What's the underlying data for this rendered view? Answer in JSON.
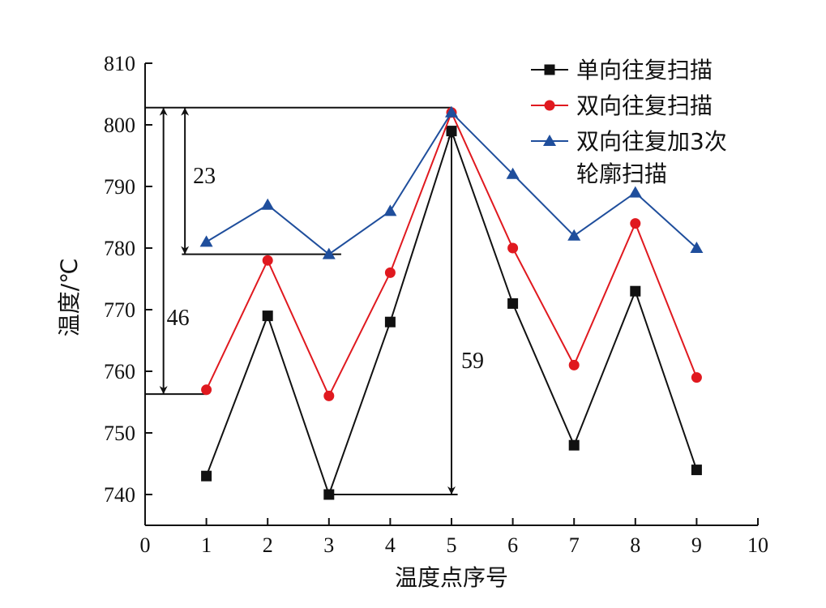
{
  "chart_data": {
    "type": "line",
    "xlabel": "温度点序号",
    "ylabel": "温度/℃",
    "xlim": [
      0,
      10
    ],
    "ylim": [
      735,
      810
    ],
    "x_ticks": [
      "0",
      "1",
      "2",
      "3",
      "4",
      "5",
      "6",
      "7",
      "8",
      "9",
      "10"
    ],
    "y_ticks": [
      "740",
      "750",
      "760",
      "770",
      "780",
      "790",
      "800",
      "810"
    ],
    "x": [
      1,
      2,
      3,
      4,
      5,
      6,
      7,
      8,
      9
    ],
    "grid": false,
    "legend_position": "top-right",
    "series": [
      {
        "name": "单向往复扫描",
        "color": "#111111",
        "marker": "square",
        "values": [
          743,
          769,
          740,
          768,
          799,
          771,
          748,
          773,
          744
        ]
      },
      {
        "name": "双向往复扫描",
        "color": "#e0191f",
        "marker": "circle",
        "values": [
          757,
          778,
          756,
          776,
          802,
          780,
          761,
          784,
          759
        ]
      },
      {
        "name": "双向往复加3次轮廓扫描",
        "legend_lines": [
          "双向往复加3次",
          "轮廓扫描"
        ],
        "color": "#1f4e9c",
        "marker": "triangle",
        "values": [
          781,
          787,
          779,
          786,
          802,
          792,
          782,
          789,
          780
        ]
      }
    ],
    "annotations": [
      {
        "label": "23",
        "x": 0.65,
        "y_from": 779,
        "y_to": 802.8,
        "ref_line_top": [
          0,
          5
        ],
        "ref_line_bottom": [
          0.6,
          3.2
        ]
      },
      {
        "label": "46",
        "x": 0.3,
        "y_from": 756.3,
        "y_to": 802.8,
        "ref_line_bottom": [
          0,
          1
        ]
      },
      {
        "label": "59",
        "x": 5.0,
        "y_from": 740,
        "y_to": 799,
        "ref_line_bottom": [
          3,
          5.1
        ]
      }
    ]
  }
}
